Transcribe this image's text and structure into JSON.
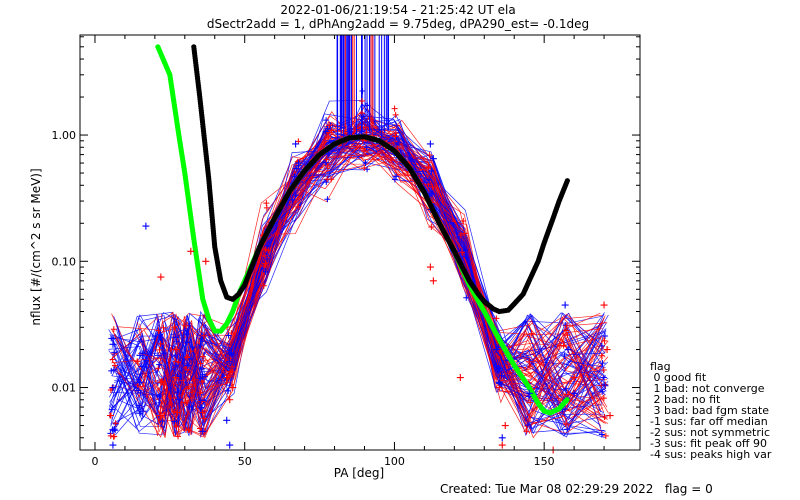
{
  "title_line1": "2022-01-06/21:19:54 - 21:25:42 UT ela",
  "title_line2": "dSectr2add = 1, dPhAng2add = 9.75deg, dPA290_est=  -0.1deg",
  "footer": "Created: Tue Mar 08 02:29:29 2022   flag = 0",
  "legend": {
    "title": "flag",
    "items": [
      " 0 good fit",
      " 1 bad: not converge",
      " 2 bad: no fit",
      " 3 bad: bad fgm state",
      "-1 sus: far off median",
      "-2 sus: not symmetric",
      "-3 sus: fit peak off 90",
      "-4 sus: peaks high var"
    ]
  },
  "colors": {
    "red": "#ff0000",
    "blue": "#0000ff",
    "green": "#00ff00",
    "black": "#000000"
  },
  "chart_data": {
    "type": "line",
    "xlabel": "PA [deg]",
    "ylabel": "nflux [#/(cm^2 s sr MeV)]",
    "xlim": [
      -5,
      182
    ],
    "ylim": [
      0.0032,
      6.2
    ],
    "yscale": "log",
    "xticks": [
      0,
      50,
      100,
      150
    ],
    "yticks": [
      {
        "v": 0.01,
        "label": "0.01"
      },
      {
        "v": 0.1,
        "label": "0.10"
      },
      {
        "v": 1.0,
        "label": "1.00"
      }
    ],
    "series": [
      {
        "color": "green",
        "style": "dots",
        "x": [
          21,
          25,
          28,
          30,
          33,
          36,
          38,
          40,
          42,
          44,
          46,
          48,
          50,
          55,
          60,
          65,
          70,
          75,
          80,
          85,
          90,
          95,
          100,
          105,
          110,
          115,
          120,
          125,
          130,
          135,
          140,
          145,
          148,
          150,
          152,
          155,
          158
        ],
        "y": [
          5.0,
          3.0,
          1.0,
          0.5,
          0.15,
          0.05,
          0.035,
          0.028,
          0.028,
          0.032,
          0.04,
          0.055,
          0.07,
          0.13,
          0.22,
          0.36,
          0.52,
          0.7,
          0.85,
          0.95,
          0.97,
          0.9,
          0.75,
          0.55,
          0.35,
          0.2,
          0.12,
          0.065,
          0.04,
          0.024,
          0.015,
          0.01,
          0.0075,
          0.0065,
          0.0063,
          0.0068,
          0.0082
        ]
      },
      {
        "color": "black",
        "style": "dots",
        "x": [
          33,
          35,
          38,
          40,
          42,
          44,
          46,
          48,
          50,
          55,
          60,
          65,
          70,
          75,
          80,
          85,
          90,
          95,
          100,
          105,
          110,
          115,
          120,
          125,
          128,
          130,
          133,
          135,
          138,
          140,
          143,
          145,
          148,
          150,
          153,
          155,
          158
        ],
        "y": [
          5.0,
          2.0,
          0.45,
          0.13,
          0.07,
          0.052,
          0.05,
          0.055,
          0.065,
          0.13,
          0.22,
          0.36,
          0.52,
          0.7,
          0.85,
          0.95,
          0.97,
          0.9,
          0.75,
          0.55,
          0.35,
          0.2,
          0.12,
          0.07,
          0.055,
          0.048,
          0.042,
          0.04,
          0.041,
          0.046,
          0.055,
          0.07,
          0.1,
          0.14,
          0.22,
          0.3,
          0.45
        ]
      },
      {
        "color": "red",
        "style": "markers",
        "x": [
          22,
          22,
          22,
          27,
          27,
          27,
          32,
          37,
          44,
          45,
          46,
          112,
          113,
          122,
          135,
          136,
          137,
          145,
          153,
          160,
          170,
          171,
          172
        ],
        "y": [
          0.075,
          0.011,
          0.006,
          0.012,
          0.02,
          0.015,
          0.12,
          0.1,
          0.012,
          0.008,
          0.01,
          0.09,
          0.07,
          0.012,
          0.01,
          0.0035,
          0.005,
          0.016,
          0.003,
          0.012,
          0.045,
          0.02,
          0.006
        ]
      },
      {
        "color": "blue",
        "style": "markers",
        "x": [
          6,
          6,
          6,
          15,
          15,
          16,
          17,
          27,
          27,
          28,
          31,
          36,
          44,
          45,
          67,
          68,
          112,
          113,
          134,
          135,
          136,
          145,
          157,
          158,
          160
        ],
        "y": [
          0.022,
          0.01,
          0.0035,
          0.018,
          0.011,
          0.0065,
          0.19,
          0.025,
          0.015,
          0.008,
          0.015,
          0.0045,
          0.0055,
          0.0035,
          0.85,
          0.6,
          0.85,
          0.65,
          0.02,
          0.011,
          0.004,
          0.009,
          0.045,
          0.02,
          0.009
        ]
      }
    ]
  }
}
